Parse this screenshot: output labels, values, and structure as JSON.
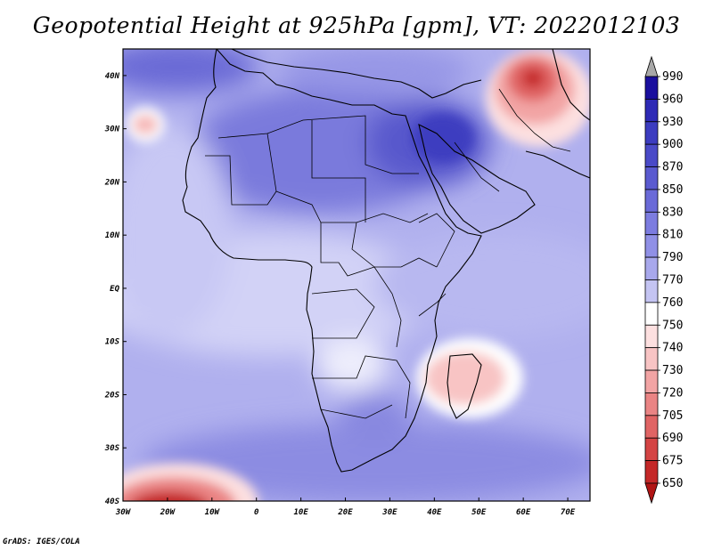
{
  "title": "Geopotential Height at 925hPa [gpm], VT: 2022012103",
  "footer": "GrADS: IGES/COLA",
  "map": {
    "variable": "Geopotential Height",
    "level": "925hPa",
    "units": "gpm",
    "valid_time": "2022012103",
    "lon_range": [
      -30,
      75
    ],
    "lat_range": [
      -40,
      45
    ],
    "lon_ticks": [
      {
        "value": -30,
        "label": "30W"
      },
      {
        "value": -20,
        "label": "20W"
      },
      {
        "value": -10,
        "label": "10W"
      },
      {
        "value": 0,
        "label": "0"
      },
      {
        "value": 10,
        "label": "10E"
      },
      {
        "value": 20,
        "label": "20E"
      },
      {
        "value": 30,
        "label": "30E"
      },
      {
        "value": 40,
        "label": "40E"
      },
      {
        "value": 50,
        "label": "50E"
      },
      {
        "value": 60,
        "label": "60E"
      },
      {
        "value": 70,
        "label": "70E"
      }
    ],
    "lat_ticks": [
      {
        "value": 40,
        "label": "40N"
      },
      {
        "value": 30,
        "label": "30N"
      },
      {
        "value": 20,
        "label": "20N"
      },
      {
        "value": 10,
        "label": "10N"
      },
      {
        "value": 0,
        "label": "EQ"
      },
      {
        "value": -10,
        "label": "10S"
      },
      {
        "value": -20,
        "label": "20S"
      },
      {
        "value": -30,
        "label": "30S"
      },
      {
        "value": -40,
        "label": "40S"
      }
    ]
  },
  "colorbar": {
    "labels": [
      "990",
      "960",
      "930",
      "900",
      "870",
      "850",
      "830",
      "810",
      "790",
      "770",
      "760",
      "750",
      "740",
      "730",
      "720",
      "705",
      "690",
      "675",
      "650"
    ],
    "colors": [
      "#1a0f9e",
      "#2e2ab6",
      "#3c3cc0",
      "#4a4ac8",
      "#5a5ad0",
      "#6a6ad8",
      "#7c7ce0",
      "#9090e6",
      "#a8a8ec",
      "#c4c4f2",
      "#ffffff",
      "#fde0e0",
      "#f8c4c4",
      "#f2a4a4",
      "#ea8484",
      "#e06464",
      "#d44444",
      "#c42828",
      "#b01414"
    ],
    "top_arrow_color": "#a8a8a8",
    "bottom_arrow_color": "#b01414"
  },
  "features": {
    "lows": [
      {
        "name": "atlantic-ridge-spot",
        "lon": -27,
        "lat": 31,
        "value": 755
      },
      {
        "name": "madagascar-trough",
        "lon": 47,
        "lat": -17,
        "value": 745
      },
      {
        "name": "iran-low",
        "lon": 63,
        "lat": 39,
        "value": 705
      },
      {
        "name": "southwest-low",
        "lon": -19,
        "lat": -40,
        "value": 690
      }
    ],
    "highs": [
      {
        "name": "arabian-high",
        "lon": 45,
        "lat": 25,
        "value": 880
      },
      {
        "name": "north-atlantic-high",
        "lon": -18,
        "lat": 44,
        "value": 860
      }
    ]
  }
}
